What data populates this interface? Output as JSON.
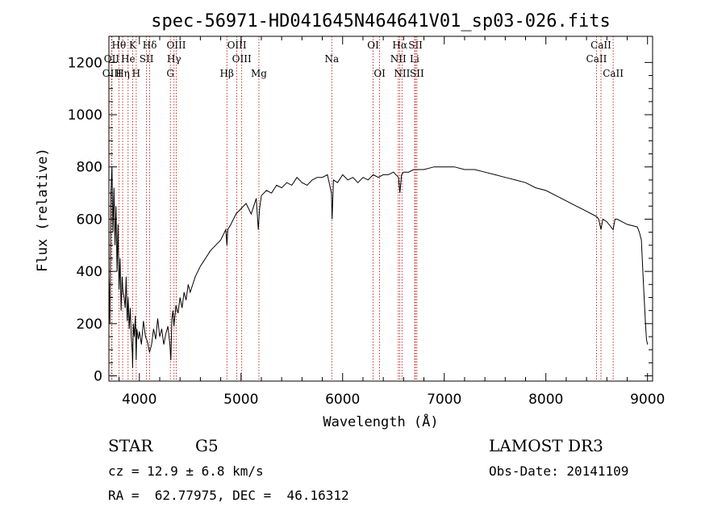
{
  "chart_data": {
    "type": "line",
    "title": "spec-56971-HD041645N464641V01_sp03-026.fits",
    "xlabel": "Wavelength (Å)",
    "ylabel": "Flux (relative)",
    "xlim": [
      3700,
      9050
    ],
    "ylim": [
      -20,
      1300
    ],
    "xticks": [
      4000,
      5000,
      6000,
      7000,
      8000,
      9000
    ],
    "yticks": [
      0,
      200,
      400,
      600,
      800,
      1000,
      1200
    ],
    "grid": false,
    "series": [
      {
        "x": [
          3700,
          3710,
          3720,
          3730,
          3740,
          3750,
          3760,
          3770,
          3780,
          3790,
          3800,
          3810,
          3820,
          3830,
          3840,
          3850,
          3860,
          3870,
          3880,
          3890,
          3900,
          3910,
          3920,
          3930,
          3933,
          3940,
          3950,
          3960,
          3968,
          3975,
          3990,
          4000,
          4020,
          4040,
          4060,
          4080,
          4100,
          4120,
          4140,
          4160,
          4180,
          4200,
          4220,
          4240,
          4260,
          4280,
          4300,
          4310,
          4320,
          4330,
          4340,
          4360,
          4380,
          4400,
          4420,
          4440,
          4460,
          4480,
          4500,
          4550,
          4600,
          4650,
          4700,
          4750,
          4800,
          4850,
          4861,
          4870,
          4900,
          4950,
          5000,
          5050,
          5100,
          5150,
          5170,
          5183,
          5200,
          5250,
          5300,
          5350,
          5400,
          5450,
          5500,
          5550,
          5600,
          5650,
          5700,
          5750,
          5800,
          5850,
          5890,
          5896,
          5910,
          5950,
          6000,
          6050,
          6100,
          6150,
          6200,
          6250,
          6300,
          6350,
          6400,
          6450,
          6500,
          6550,
          6563,
          6580,
          6600,
          6650,
          6700,
          6750,
          6800,
          6900,
          7000,
          7100,
          7200,
          7300,
          7400,
          7500,
          7600,
          7700,
          7800,
          7900,
          8000,
          8100,
          8200,
          8300,
          8400,
          8450,
          8498,
          8520,
          8542,
          8560,
          8600,
          8662,
          8680,
          8700,
          8750,
          8800,
          8850,
          8900,
          8920,
          8940,
          8960,
          8980,
          8990,
          9000
        ],
        "y": [
          380,
          200,
          700,
          800,
          550,
          720,
          500,
          650,
          400,
          580,
          330,
          450,
          250,
          380,
          320,
          300,
          260,
          380,
          210,
          300,
          180,
          260,
          150,
          90,
          30,
          200,
          150,
          230,
          60,
          180,
          140,
          170,
          120,
          210,
          150,
          130,
          90,
          120,
          180,
          140,
          220,
          150,
          180,
          120,
          160,
          190,
          120,
          60,
          220,
          250,
          190,
          270,
          240,
          300,
          260,
          320,
          290,
          350,
          320,
          380,
          420,
          450,
          480,
          500,
          520,
          560,
          500,
          560,
          580,
          620,
          640,
          660,
          620,
          680,
          560,
          640,
          690,
          710,
          700,
          730,
          720,
          740,
          730,
          760,
          740,
          730,
          750,
          760,
          760,
          770,
          700,
          600,
          750,
          740,
          770,
          750,
          760,
          740,
          760,
          750,
          770,
          760,
          770,
          770,
          780,
          760,
          700,
          770,
          780,
          780,
          790,
          790,
          790,
          800,
          800,
          800,
          790,
          790,
          780,
          770,
          760,
          750,
          740,
          720,
          710,
          690,
          670,
          650,
          630,
          620,
          610,
          600,
          560,
          600,
          590,
          560,
          600,
          600,
          590,
          580,
          575,
          570,
          550,
          520,
          350,
          200,
          140,
          120
        ]
      }
    ],
    "spectral_lines": [
      {
        "name": "Hθ",
        "x": 3798,
        "row": 0
      },
      {
        "name": "OII",
        "x": 3727,
        "row": 1
      },
      {
        "name": "OIII",
        "x": 3730,
        "row": 2
      },
      {
        "name": "Hη",
        "x": 3835,
        "row": 2
      },
      {
        "name": "He",
        "x": 3889,
        "row": 1
      },
      {
        "name": "K",
        "x": 3934,
        "row": 0
      },
      {
        "name": "H",
        "x": 3969,
        "row": 2
      },
      {
        "name": "SII",
        "x": 4070,
        "row": 1
      },
      {
        "name": "Hδ",
        "x": 4102,
        "row": 0
      },
      {
        "name": "OIII",
        "x": 4363,
        "row": 0
      },
      {
        "name": "Hγ",
        "x": 4341,
        "row": 1
      },
      {
        "name": "G",
        "x": 4305,
        "row": 2
      },
      {
        "name": "Hβ",
        "x": 4861,
        "row": 2
      },
      {
        "name": "OIII",
        "x": 4959,
        "row": 0
      },
      {
        "name": "OIII",
        "x": 5007,
        "row": 1
      },
      {
        "name": "Mg",
        "x": 5176,
        "row": 2
      },
      {
        "name": "Na",
        "x": 5893,
        "row": 1
      },
      {
        "name": "OI",
        "x": 6300,
        "row": 0
      },
      {
        "name": "OI",
        "x": 6364,
        "row": 2
      },
      {
        "name": "Hα",
        "x": 6563,
        "row": 0
      },
      {
        "name": "NII",
        "x": 6548,
        "row": 1
      },
      {
        "name": "NII",
        "x": 6584,
        "row": 2
      },
      {
        "name": "SII",
        "x": 6717,
        "row": 0
      },
      {
        "name": "Li",
        "x": 6708,
        "row": 1
      },
      {
        "name": "SII",
        "x": 6731,
        "row": 2
      },
      {
        "name": "CaII",
        "x": 8498,
        "row": 1
      },
      {
        "name": "CaII",
        "x": 8542,
        "row": 0
      },
      {
        "name": "CaII",
        "x": 8662,
        "row": 2
      }
    ]
  },
  "info": {
    "object_class": "STAR",
    "subclass": "G5",
    "survey": "LAMOST DR3",
    "redshift": "cz = 12.9 ± 6.8 km/s",
    "obs_date": "Obs-Date: 20141109",
    "coords": "RA =  62.77975, DEC =  46.16312"
  },
  "colors": {
    "line_marker": "#b40000",
    "spectrum": "#000000"
  }
}
